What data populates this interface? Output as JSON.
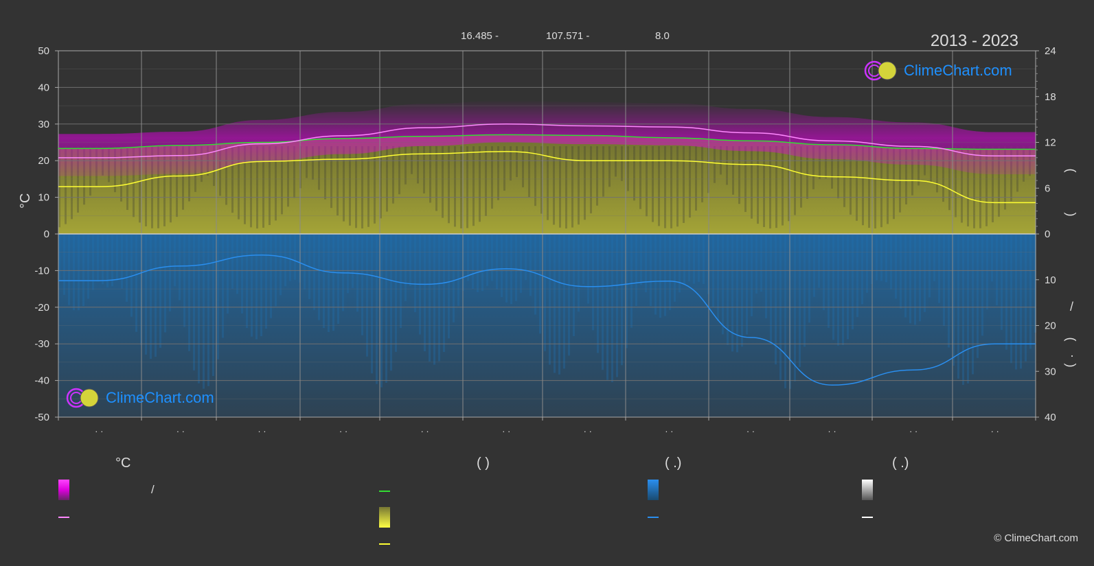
{
  "header": {
    "lat_value": "16.485 -",
    "lon_value": "107.571 -",
    "tz_value": "8.0",
    "period": "2013 - 2023"
  },
  "axes": {
    "left_unit": "°C",
    "right_marks_top": [
      "(",
      ")"
    ],
    "right_marks_bottom": [
      "/",
      "(",
      "·",
      ")"
    ]
  },
  "legend": {
    "col1_title": "°C",
    "col1_row1_sep": "/",
    "col2_title": "(           )",
    "col3_title": "(    .)",
    "col4_title": "(    .)"
  },
  "logo_text": "ClimeChart.com",
  "copyright": "© ClimeChart.com",
  "colors": {
    "background": "#333333",
    "temperature_band": "#e000e0",
    "temperature_line": "#ff88ff",
    "daylight_line": "#33dd33",
    "sunshine_band": "#bcbc30",
    "sunshine_line": "#ffff33",
    "precipitation_band": "#1f6fb0",
    "precipitation_line": "#2a8ff0",
    "grid": "#707070"
  },
  "chart_data": {
    "type": "area",
    "x_months": 12,
    "x_tick_labels": [
      "· ·",
      "· ·",
      "· ·",
      "· ·",
      "· ·",
      "· ·",
      "· ·",
      "· ·",
      "· ·",
      "· ·",
      "· ·",
      "· ·"
    ],
    "left_axis": {
      "label": "°C",
      "ylim": [
        -50,
        50
      ],
      "ticks": [
        50,
        40,
        30,
        20,
        10,
        0,
        -10,
        -20,
        -30,
        -40,
        -50
      ]
    },
    "right_axis_top": {
      "ylim": [
        0,
        24
      ],
      "ticks": [
        24,
        18,
        12,
        6,
        0
      ]
    },
    "right_axis_bottom": {
      "ylim": [
        0,
        40
      ],
      "ticks": [
        0,
        10,
        20,
        30,
        40
      ]
    },
    "grid": true,
    "series": [
      {
        "key": "temperature_mean",
        "values": [
          20.8,
          21.4,
          24.6,
          26.8,
          29.0,
          30.0,
          29.5,
          29.2,
          27.6,
          25.4,
          23.9,
          21.3
        ]
      },
      {
        "key": "daylight_hours",
        "values": [
          11.2,
          11.6,
          12.0,
          12.5,
          12.8,
          13.0,
          12.9,
          12.6,
          12.2,
          11.7,
          11.2,
          11.1
        ]
      },
      {
        "key": "sunshine_hours",
        "values": [
          6.2,
          7.6,
          9.5,
          9.8,
          10.5,
          10.8,
          9.6,
          9.6,
          9.1,
          7.5,
          7.0,
          4.1
        ]
      },
      {
        "key": "precipitation_mm",
        "values": [
          10.2,
          7.0,
          4.6,
          8.5,
          11.0,
          7.6,
          11.5,
          10.3,
          22.6,
          33.0,
          29.7,
          24.0
        ]
      }
    ]
  }
}
